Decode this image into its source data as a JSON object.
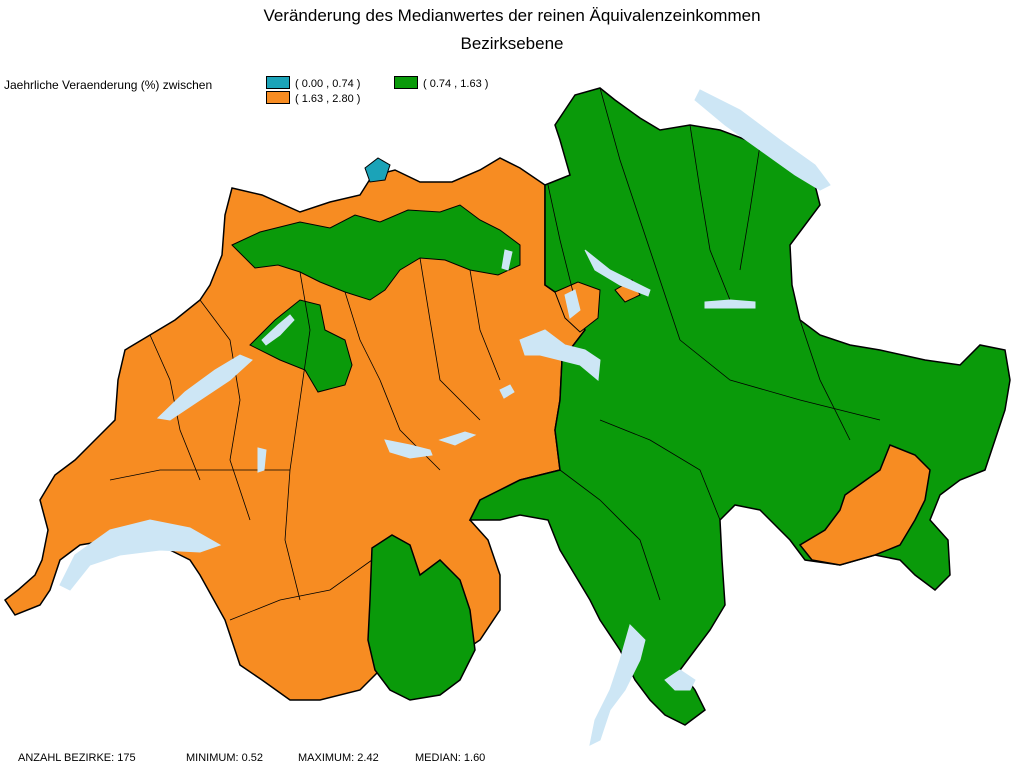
{
  "title": {
    "line1": "Veränderung des Medianwertes der reinen Äquivalenzeinkommen",
    "line2": "Bezirksebene"
  },
  "legend": {
    "label": "Jaehrliche Veraenderung (%) zwischen",
    "classes": [
      {
        "range": "( 0.00 , 0.74 )",
        "color": "#1ba3b8"
      },
      {
        "range": "( 0.74 , 1.63 )",
        "color": "#0a9a0a"
      },
      {
        "range": "( 1.63 , 2.80 )",
        "color": "#f78c22"
      }
    ]
  },
  "colors": {
    "lake": "#cde6f5",
    "border": "#000000"
  },
  "footer": {
    "districts": "ANZAHL BEZIRKE: 175",
    "minimum": "MINIMUM: 0.52",
    "maximum": "MAXIMUM: 2.42",
    "median": "MEDIAN: 1.60"
  }
}
